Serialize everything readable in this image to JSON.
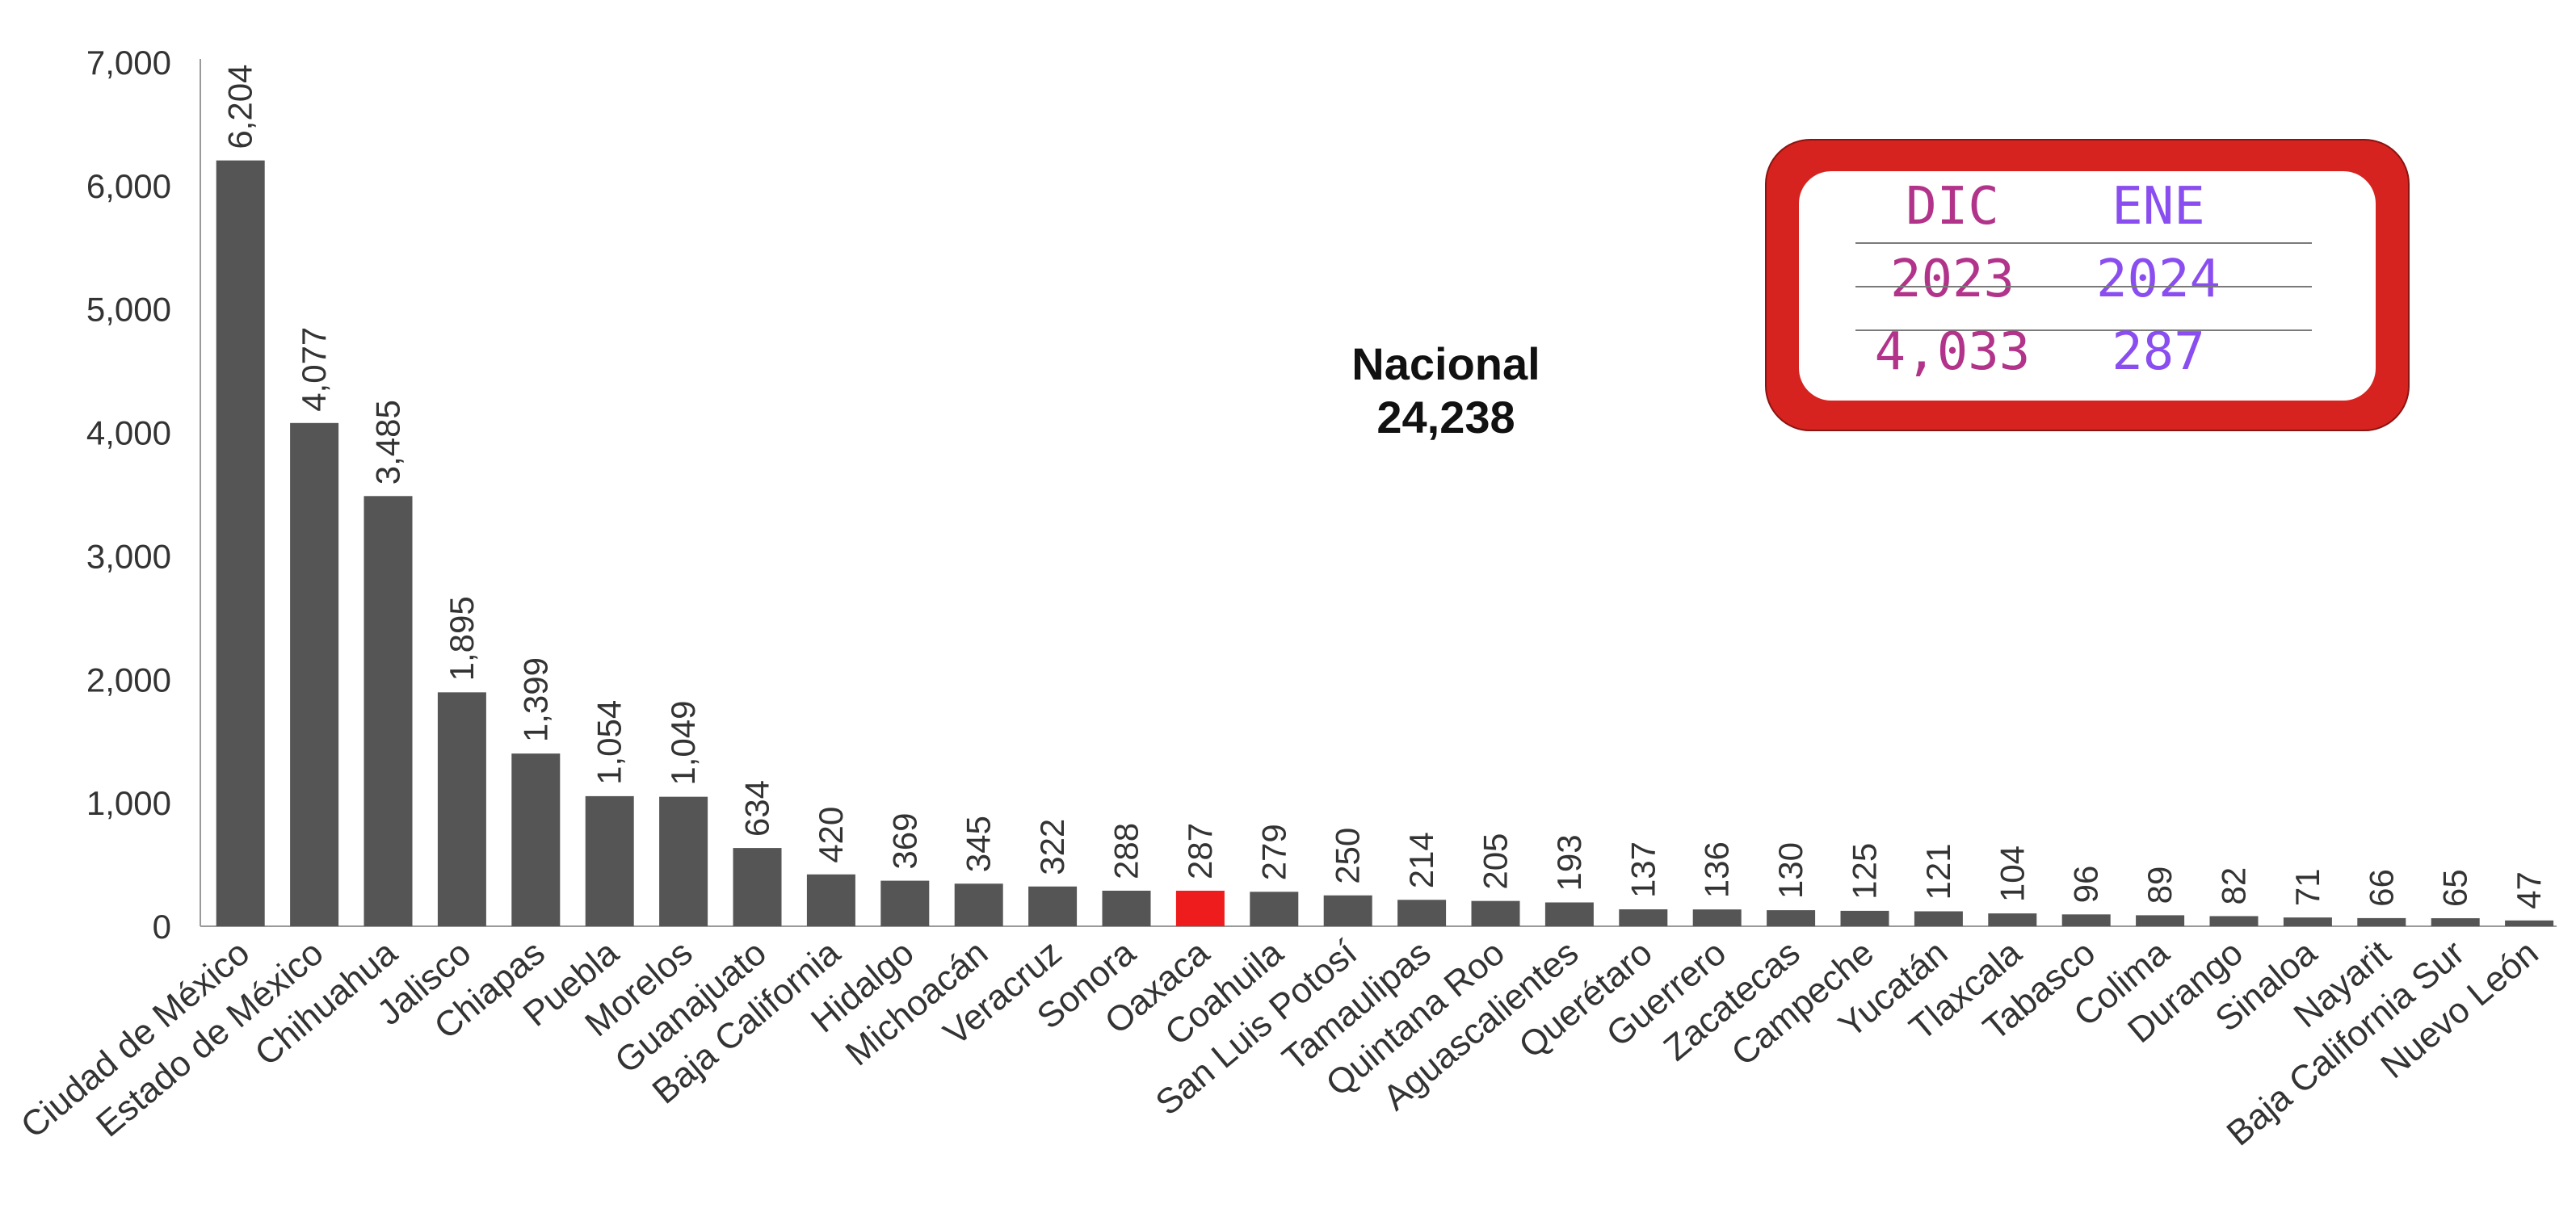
{
  "chart_data": {
    "type": "bar",
    "title": "",
    "xlabel": "",
    "ylabel": "",
    "ylim": [
      0,
      7000
    ],
    "yticks": [
      0,
      1000,
      2000,
      3000,
      4000,
      5000,
      6000,
      7000
    ],
    "ytick_labels": [
      "0",
      "1,000",
      "2,000",
      "3,000",
      "4,000",
      "5,000",
      "6,000",
      "7,000"
    ],
    "grid": false,
    "bar_color": "#555555",
    "highlight_color": "#ee1c1c",
    "highlight_category": "Oaxaca",
    "categories": [
      "Ciudad de México",
      "Estado de México",
      "Chihuahua",
      "Jalisco",
      "Chiapas",
      "Puebla",
      "Morelos",
      "Guanajuato",
      "Baja California",
      "Hidalgo",
      "Michoacán",
      "Veracruz",
      "Sonora",
      "Oaxaca",
      "Coahuila",
      "San Luis Potosí",
      "Tamaulipas",
      "Quintana Roo",
      "Aguascalientes",
      "Querétaro",
      "Guerrero",
      "Zacatecas",
      "Campeche",
      "Yucatán",
      "Tlaxcala",
      "Tabasco",
      "Colima",
      "Durango",
      "Sinaloa",
      "Nayarit",
      "Baja California Sur",
      "Nuevo León"
    ],
    "values": [
      6204,
      4077,
      3485,
      1895,
      1399,
      1054,
      1049,
      634,
      420,
      369,
      345,
      322,
      288,
      287,
      279,
      250,
      214,
      205,
      193,
      137,
      136,
      130,
      125,
      121,
      104,
      96,
      89,
      82,
      71,
      66,
      65,
      47
    ],
    "value_labels": [
      "6,204",
      "4,077",
      "3,485",
      "1,895",
      "1,399",
      "1,054",
      "1,049",
      "634",
      "420",
      "369",
      "345",
      "322",
      "288",
      "287",
      "279",
      "250",
      "214",
      "205",
      "193",
      "137",
      "136",
      "130",
      "125",
      "121",
      "104",
      "96",
      "89",
      "82",
      "71",
      "66",
      "65",
      "47"
    ]
  },
  "annotation": {
    "label": "Nacional",
    "value": "24,238"
  },
  "callout": {
    "col1_month": "DIC",
    "col1_year": "2023",
    "col1_value": "4,033",
    "col2_month": "ENE",
    "col2_year": "2024",
    "col2_value": "287",
    "border_color": "#d7231f",
    "col1_color": "#b2338a",
    "col2_color": "#8a4ef0"
  }
}
